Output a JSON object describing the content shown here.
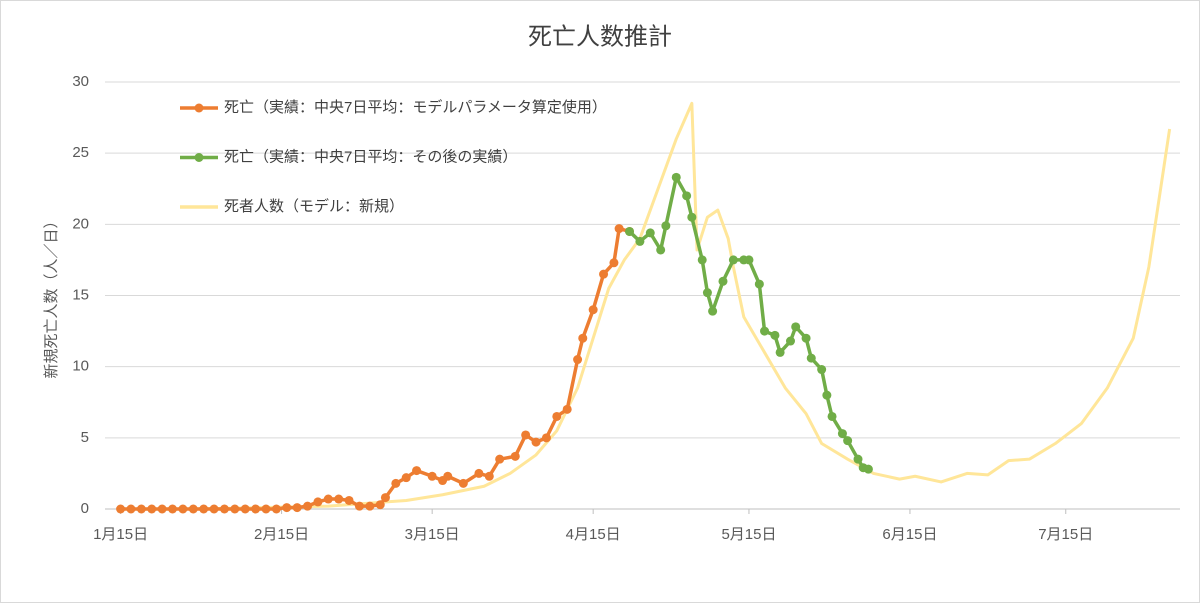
{
  "chart_data": {
    "type": "line",
    "title": "死亡人数推計",
    "y_label": "新規死亡人数（人／日）",
    "xlim": [
      -3,
      204
    ],
    "xticks": [
      {
        "value": 0,
        "label": "1月15日"
      },
      {
        "value": 31,
        "label": "2月15日"
      },
      {
        "value": 60,
        "label": "3月15日"
      },
      {
        "value": 91,
        "label": "4月15日"
      },
      {
        "value": 121,
        "label": "5月15日"
      },
      {
        "value": 152,
        "label": "6月15日"
      },
      {
        "value": 182,
        "label": "7月15日"
      }
    ],
    "ylim": [
      0,
      30
    ],
    "yticks": [
      0,
      5,
      10,
      15,
      20,
      25,
      30
    ],
    "grid": true,
    "legend": "upper left",
    "series": [
      {
        "name": "死亡（実績：中央7日平均：モデルパラメータ算定使用）",
        "color": "#ed7d31",
        "markers": true,
        "x": [
          0,
          2,
          4,
          6,
          8,
          10,
          12,
          14,
          16,
          18,
          20,
          22,
          24,
          26,
          28,
          30,
          32,
          34,
          36,
          38,
          40,
          42,
          44,
          46,
          48,
          50,
          51,
          53,
          55,
          57,
          60,
          62,
          63,
          66,
          69,
          71,
          73,
          76,
          78,
          80,
          82,
          84,
          86,
          88,
          89,
          91,
          93,
          95,
          96,
          98
        ],
        "values": [
          0,
          0,
          0,
          0,
          0,
          0,
          0,
          0,
          0,
          0,
          0,
          0,
          0,
          0,
          0,
          0,
          0.1,
          0.1,
          0.2,
          0.5,
          0.7,
          0.7,
          0.6,
          0.2,
          0.2,
          0.3,
          0.8,
          1.8,
          2.2,
          2.7,
          2.3,
          2.0,
          2.3,
          1.8,
          2.5,
          2.3,
          3.5,
          3.7,
          5.2,
          4.7,
          5.0,
          6.5,
          7.0,
          10.5,
          12,
          14,
          16.5,
          17.3,
          19.7,
          19.5
        ]
      },
      {
        "name": "死亡（実績：中央7日平均：その後の実績）",
        "color": "#70ad47",
        "markers": true,
        "x": [
          98,
          100,
          102,
          104,
          105,
          107,
          109,
          110,
          112,
          113,
          114,
          116,
          118,
          120,
          121,
          123,
          124,
          126,
          127,
          129,
          130,
          132,
          133,
          135,
          136,
          137,
          139,
          140,
          142,
          143,
          144
        ],
        "values": [
          19.5,
          18.8,
          19.4,
          18.2,
          19.9,
          23.3,
          22,
          20.5,
          17.5,
          15.2,
          13.9,
          16,
          17.5,
          17.5,
          17.5,
          15.8,
          12.5,
          12.2,
          11.0,
          11.8,
          12.8,
          12,
          10.6,
          9.8,
          8.0,
          6.5,
          5.3,
          4.8,
          3.5,
          2.9,
          2.8
        ]
      },
      {
        "name": "死者人数（モデル：新規）",
        "color": "#ffe699",
        "markers": false,
        "x": [
          14,
          40,
          55,
          62,
          70,
          75,
          80,
          84,
          88,
          91,
          94,
          97,
          100,
          104,
          107,
          110,
          111,
          113,
          115,
          117,
          118,
          120,
          124,
          128,
          132,
          135,
          140,
          145,
          150,
          153,
          158,
          163,
          167,
          171,
          175,
          180,
          185,
          190,
          195,
          198,
          202
        ],
        "values": [
          0,
          0.2,
          0.6,
          1.0,
          1.6,
          2.5,
          3.8,
          5.5,
          8.5,
          12,
          15.5,
          17.5,
          19,
          23,
          26,
          28.5,
          18.2,
          20.5,
          21,
          19,
          17,
          13.5,
          11,
          8.5,
          6.7,
          4.6,
          3.5,
          2.5,
          2.1,
          2.3,
          1.9,
          2.5,
          2.4,
          3.4,
          3.5,
          4.6,
          6.0,
          8.5,
          12,
          17,
          26.7
        ]
      }
    ]
  }
}
